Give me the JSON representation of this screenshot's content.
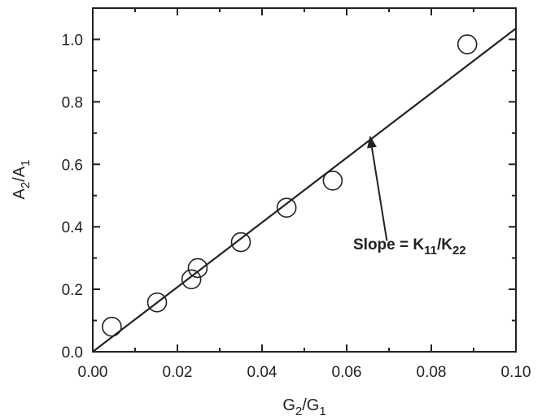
{
  "chart_data": {
    "type": "scatter",
    "x_label": {
      "main": "G",
      "sub1": "2",
      "sep": "/G",
      "sub2": "1"
    },
    "y_label": {
      "main": "A",
      "sub1": "2",
      "sep": "/A",
      "sub2": "1"
    },
    "xlim": [
      0.0,
      0.1
    ],
    "ylim": [
      0.0,
      1.1
    ],
    "x_ticks": [
      0.0,
      0.02,
      0.04,
      0.06,
      0.08,
      0.1
    ],
    "y_ticks": [
      0.0,
      0.2,
      0.4,
      0.6,
      0.8,
      1.0
    ],
    "x_tick_labels": [
      "0.00",
      "0.02",
      "0.04",
      "0.06",
      "0.08",
      "0.10"
    ],
    "y_tick_labels": [
      "0.0",
      "0.2",
      "0.4",
      "0.6",
      "0.8",
      "1.0"
    ],
    "x_minor_step": 0.01,
    "y_minor_step": 0.1,
    "points": [
      {
        "x": 0.0045,
        "y": 0.08
      },
      {
        "x": 0.0152,
        "y": 0.158
      },
      {
        "x": 0.0233,
        "y": 0.232
      },
      {
        "x": 0.0248,
        "y": 0.268
      },
      {
        "x": 0.035,
        "y": 0.351
      },
      {
        "x": 0.0458,
        "y": 0.461
      },
      {
        "x": 0.0567,
        "y": 0.548
      },
      {
        "x": 0.0885,
        "y": 0.984
      }
    ],
    "fit_line": {
      "x": [
        0.0,
        0.1
      ],
      "y": [
        0.0,
        1.035
      ]
    },
    "annotation": {
      "text_main": "Slope = K",
      "sub1": "11",
      "sep": "/K",
      "sub2": "22",
      "points_to": {
        "x": 0.0655,
        "y": 0.692
      },
      "from": {
        "x": 0.0695,
        "y": 0.355
      }
    },
    "marker": "open-circle",
    "colors": {
      "line": "#222222",
      "marker_stroke": "#222222",
      "background": "#ffffff"
    }
  }
}
